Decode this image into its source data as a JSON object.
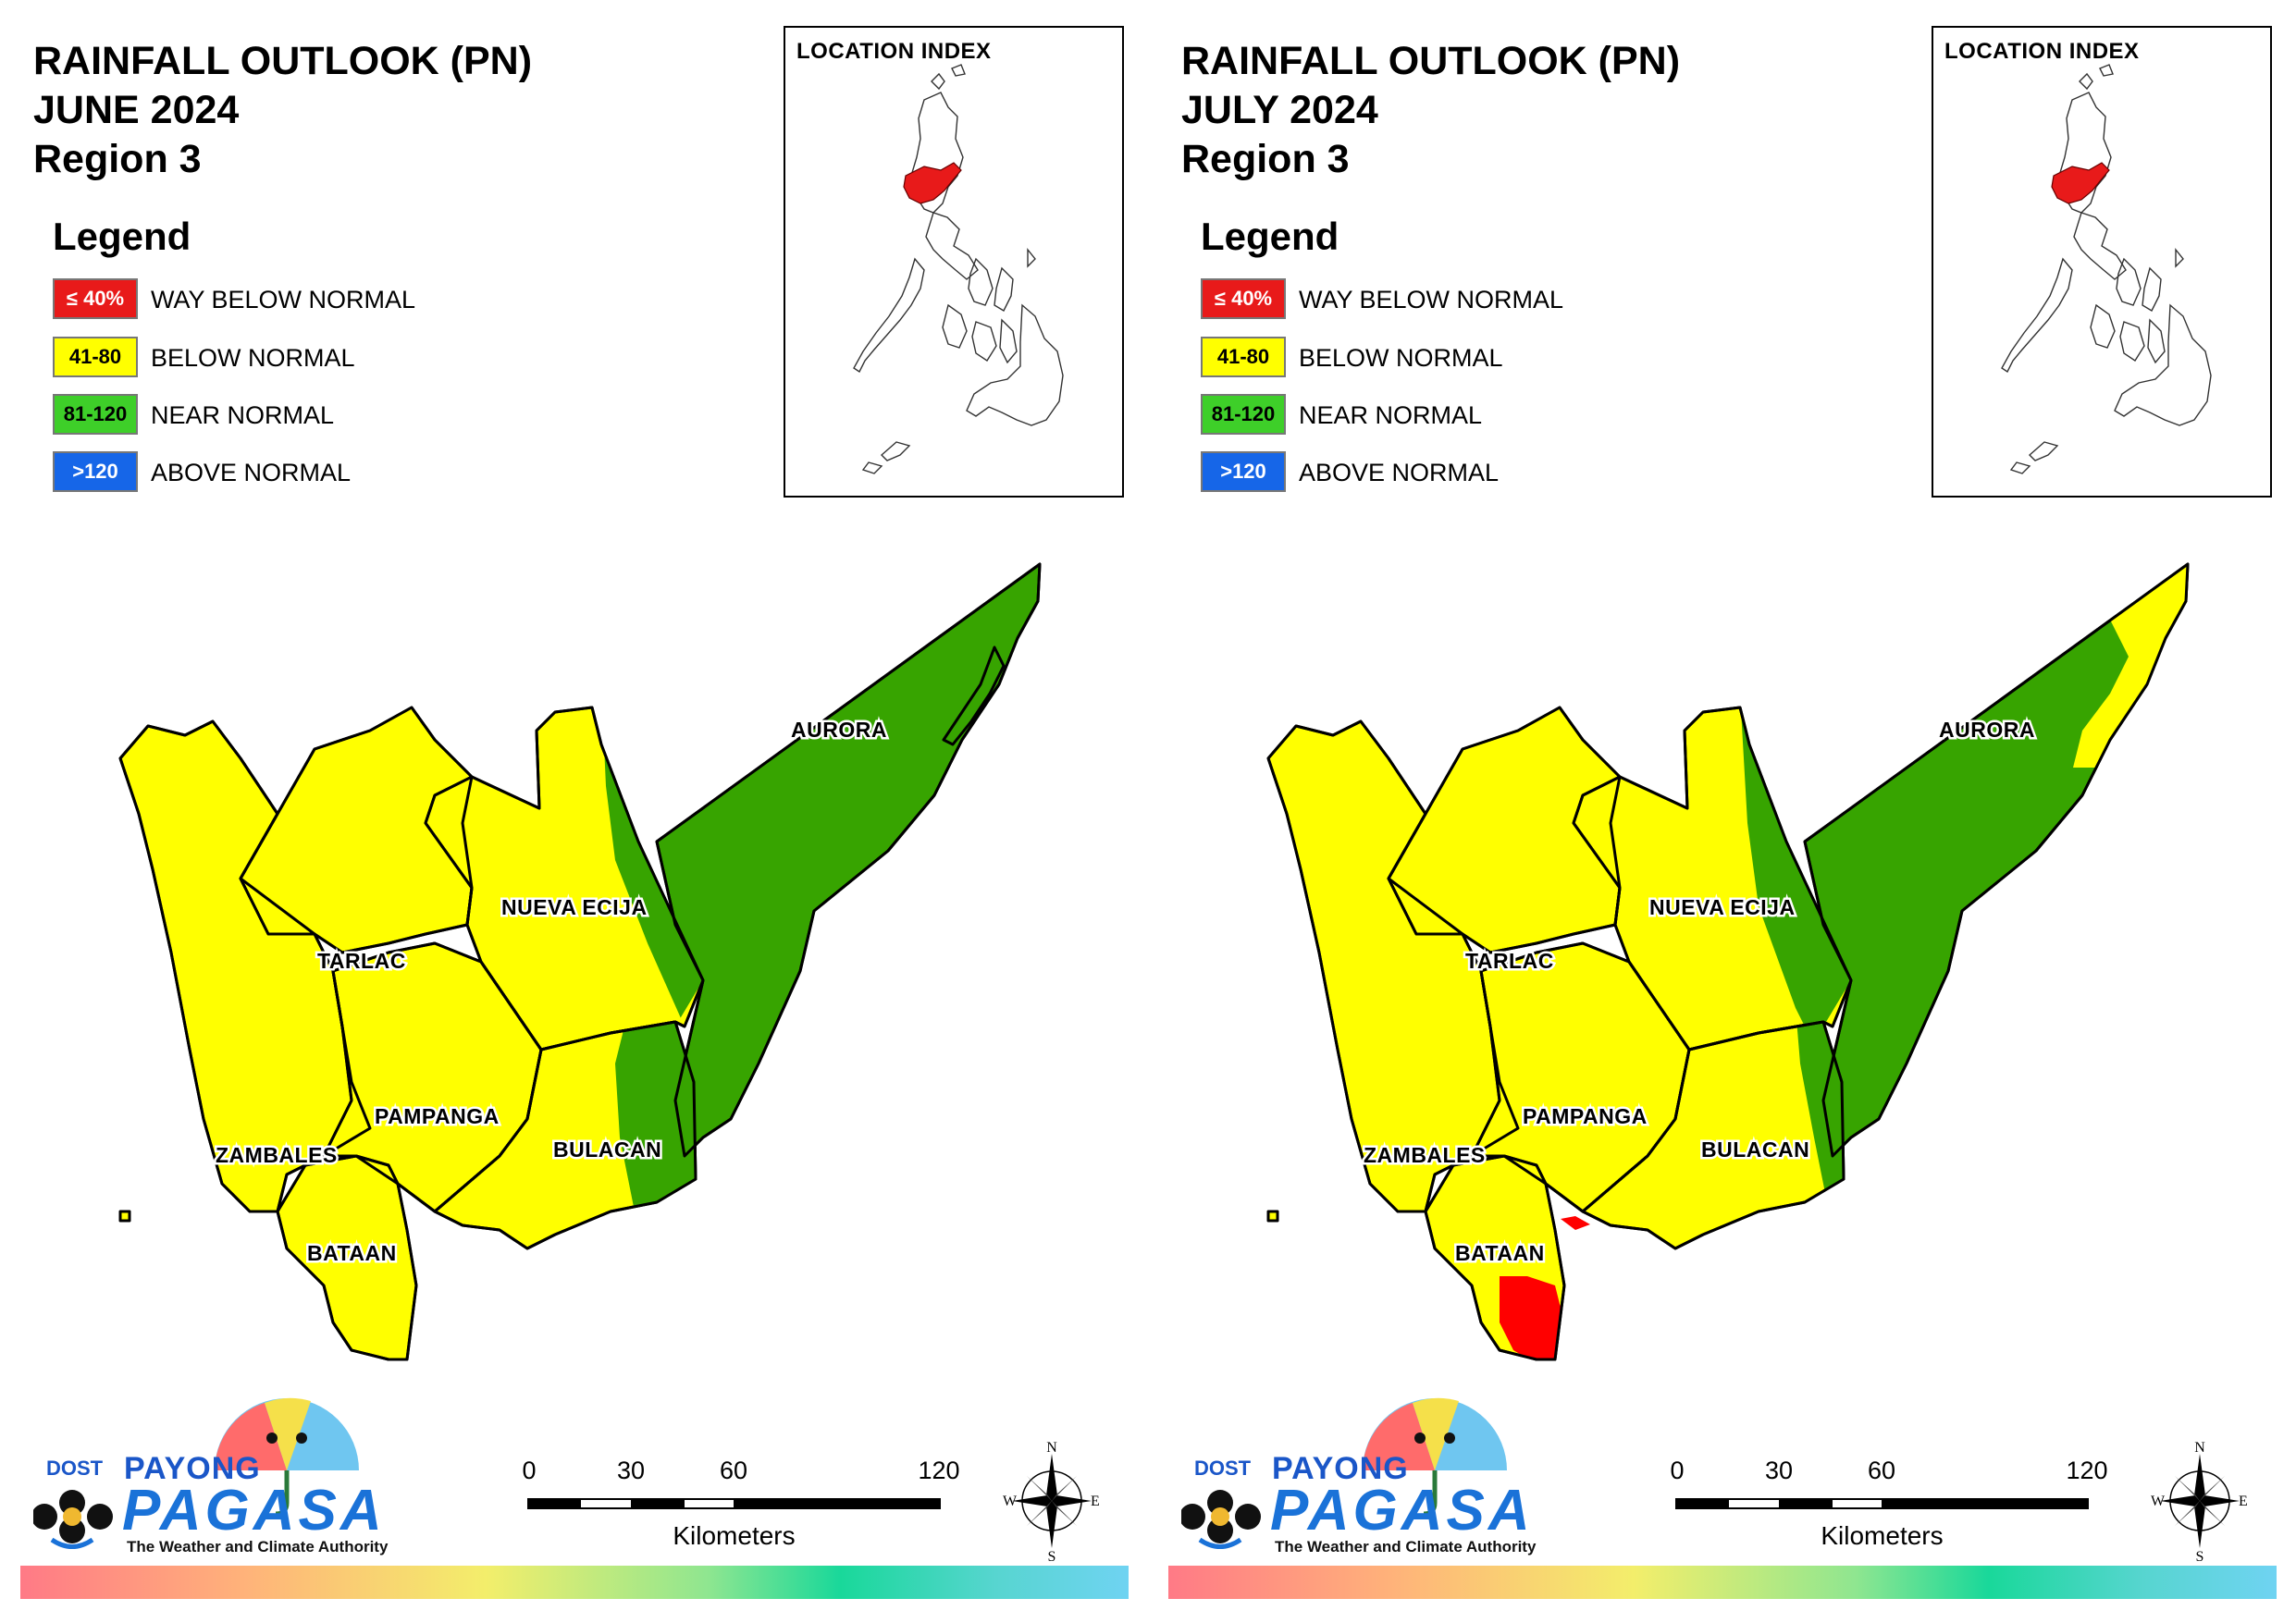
{
  "maps": [
    {
      "title_line1": "RAINFALL OUTLOOK (PN)",
      "title_line2": "JUNE 2024",
      "title_line3": "Region 3"
    },
    {
      "title_line1": "RAINFALL OUTLOOK (PN)",
      "title_line2": "JULY 2024",
      "title_line3": "Region 3"
    }
  ],
  "legend": {
    "title": "Legend",
    "items": [
      {
        "range": "≤ 40%",
        "label": "WAY BELOW NORMAL",
        "color": "#e81a1a"
      },
      {
        "range": "41-80",
        "label": "BELOW NORMAL",
        "color": "#ffff00"
      },
      {
        "range": "81-120",
        "label": "NEAR NORMAL",
        "color": "#3ecf29"
      },
      {
        "range": ">120",
        "label": "ABOVE NORMAL",
        "color": "#1666e8"
      }
    ]
  },
  "location_index": {
    "title": "LOCATION INDEX",
    "highlight_color": "#e81a1a"
  },
  "provinces": {
    "aurora": "AURORA",
    "nueva_ecija": "NUEVA ECIJA",
    "tarlac": "TARLAC",
    "pampanga": "PAMPANGA",
    "bulacan": "BULACAN",
    "zambales": "ZAMBALES",
    "bataan": "BATAAN"
  },
  "colors": {
    "way_below_normal": "#ff0000",
    "below_normal": "#ffff00",
    "near_normal": "#37a400"
  },
  "scale": {
    "ticks": [
      "0",
      "30",
      "60",
      "120"
    ],
    "unit": "Kilometers"
  },
  "compass": {
    "n": "N",
    "s": "S",
    "e": "E",
    "w": "W"
  },
  "logo": {
    "dost": "DOST",
    "payong": "PAYONG",
    "pagasa": "PAGASA",
    "tagline": "The Weather and Climate Authority"
  }
}
